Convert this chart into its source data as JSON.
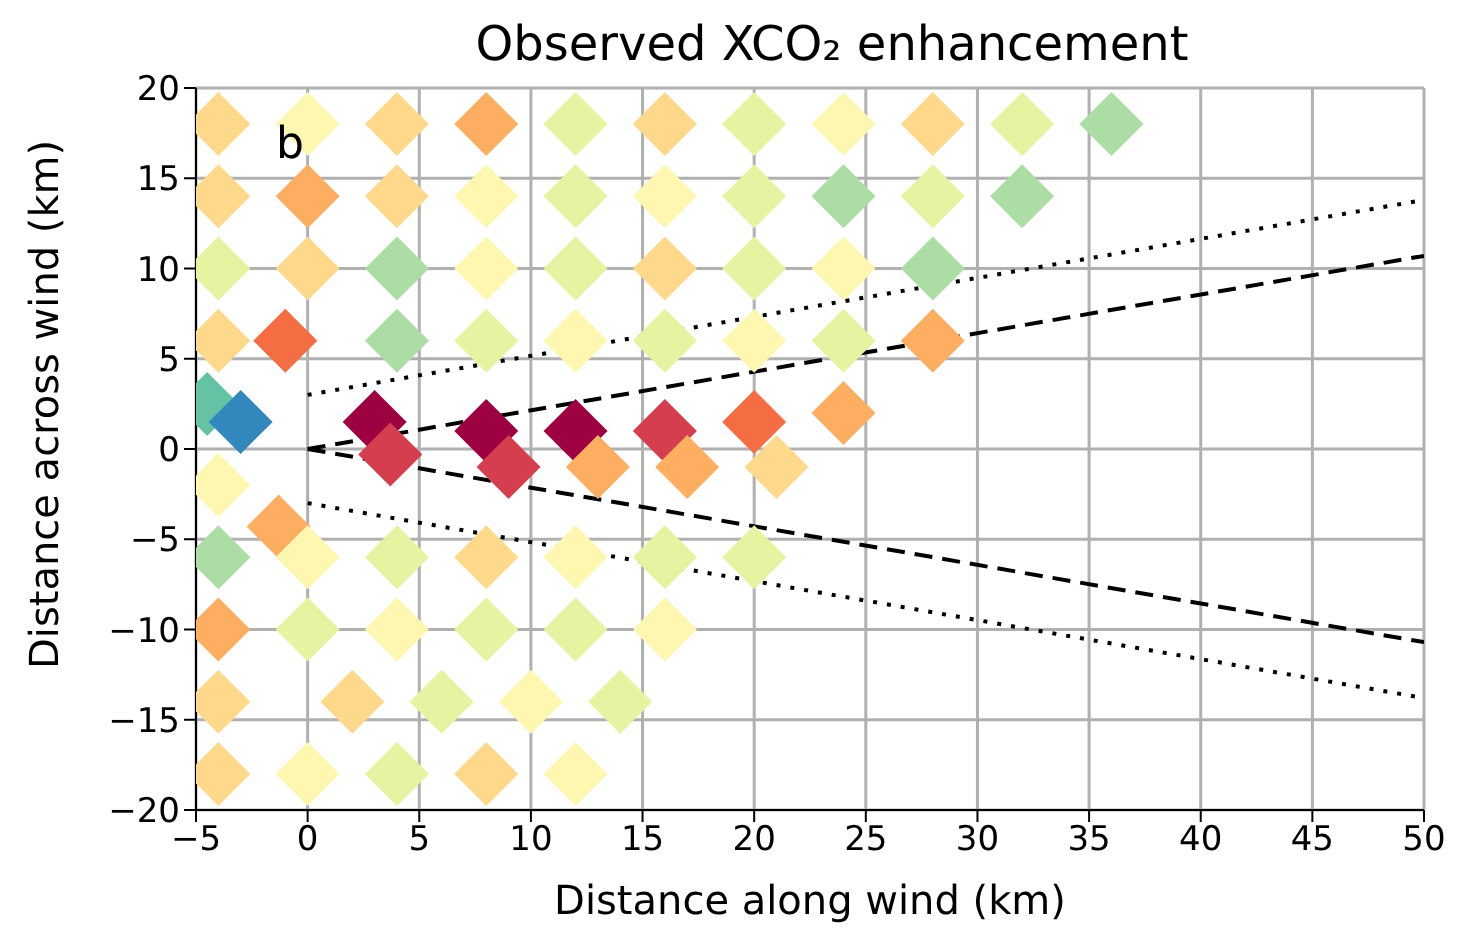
{
  "chart_data": {
    "type": "scatter",
    "title": "Observed XCO₂ enhancement",
    "xlabel": "Distance along wind (km)",
    "ylabel": "Distance across wind (km)",
    "annotations": [
      "b"
    ],
    "grid": true,
    "xlim": [
      -5,
      50
    ],
    "xticks": [
      -5,
      0,
      5,
      10,
      15,
      20,
      25,
      30,
      35,
      40,
      45,
      50
    ],
    "ylim": [
      -20,
      20
    ],
    "yticks": [
      -20,
      -15,
      -10,
      -5,
      0,
      5,
      10,
      15,
      20
    ],
    "series": [
      {
        "marker": "diamond",
        "x": [
          -4,
          0,
          4,
          8,
          12,
          16,
          20,
          24,
          28,
          32,
          36,
          -4,
          0,
          4,
          8,
          12,
          16,
          20,
          24,
          28,
          32,
          -4,
          0,
          4,
          8,
          12,
          16,
          20,
          24,
          28,
          -4,
          -1,
          4,
          8,
          12,
          16,
          20,
          24,
          28,
          -4.5,
          -3,
          3,
          8,
          12,
          16,
          20,
          24,
          -4,
          -1.3,
          3.7,
          9,
          13,
          17,
          21,
          -4,
          0,
          4,
          8,
          12,
          16,
          20,
          -4,
          0,
          4,
          8,
          12,
          16,
          -4,
          2,
          6,
          10,
          14,
          -4,
          0,
          4,
          8,
          12
        ],
        "values": [
          18,
          18,
          18,
          18,
          18,
          18,
          18,
          18,
          18,
          18,
          18,
          14,
          14,
          14,
          14,
          14,
          14,
          14,
          14,
          14,
          14,
          10,
          10,
          10,
          10,
          10,
          10,
          10,
          10,
          10,
          6,
          6,
          6,
          6,
          6,
          6,
          6,
          6,
          6,
          2.5,
          1.5,
          1.5,
          1,
          1,
          1,
          1.5,
          2,
          -2,
          -4.3,
          -0.3,
          -1,
          -1,
          -1,
          -1,
          -6,
          -6,
          -6,
          -6,
          -6,
          -6,
          -6,
          -10,
          -10,
          -10,
          -10,
          -10,
          -10,
          -14,
          -14,
          -14,
          -14,
          -14,
          -18,
          -18,
          -18,
          -18,
          -18
        ],
        "colors": [
          "#fed98b",
          "#fdf7b0",
          "#fed98b",
          "#fdae61",
          "#e6f3a0",
          "#fed98b",
          "#e6f3a0",
          "#fdf7b0",
          "#fed98b",
          "#e6f3a0",
          "#abdda4",
          "#fed98b",
          "#fdae61",
          "#fed98b",
          "#fdf7b0",
          "#e6f3a0",
          "#fdf7b0",
          "#e6f3a0",
          "#abdda4",
          "#e6f3a0",
          "#abdda4",
          "#e6f3a0",
          "#fed98b",
          "#abdda4",
          "#fdf7b0",
          "#e6f3a0",
          "#fed98b",
          "#e6f3a0",
          "#fdf7b0",
          "#abdda4",
          "#fed98b",
          "#f46d43",
          "#abdda4",
          "#e6f3a0",
          "#fdf7b0",
          "#e6f3a0",
          "#fdf7b0",
          "#e6f3a0",
          "#fdae61",
          "#66c2a5",
          "#3288bd",
          "#9e0142",
          "#9e0142",
          "#9e0142",
          "#d53e4f",
          "#f46d43",
          "#fdae61",
          "#fdf7b0",
          "#fdae61",
          "#d53e4f",
          "#d53e4f",
          "#fdae61",
          "#fdae61",
          "#fed98b",
          "#abdda4",
          "#fdf7b0",
          "#e6f3a0",
          "#fed98b",
          "#fdf7b0",
          "#e6f3a0",
          "#e6f3a0",
          "#fdae61",
          "#e6f3a0",
          "#fdf7b0",
          "#e6f3a0",
          "#e6f3a0",
          "#fdf7b0",
          "#fed98b",
          "#fed98b",
          "#e6f3a0",
          "#fdf7b0",
          "#e6f3a0",
          "#fed98b",
          "#fdf7b0",
          "#e6f3a0",
          "#fed98b",
          "#fdf7b0"
        ]
      },
      {
        "type": "line",
        "x": [
          0,
          50
        ],
        "values": [
          0,
          10.7
        ],
        "color": "#000000",
        "line_style": "dashed",
        "marker": "none"
      },
      {
        "type": "line",
        "x": [
          0,
          50
        ],
        "values": [
          0,
          -10.7
        ],
        "color": "#000000",
        "line_style": "dashed",
        "marker": "none"
      },
      {
        "type": "line",
        "x": [
          0,
          50
        ],
        "values": [
          3,
          13.8
        ],
        "color": "#000000",
        "line_style": "dotted",
        "marker": "none"
      },
      {
        "type": "line",
        "x": [
          0,
          50
        ],
        "values": [
          -3,
          -13.8
        ],
        "color": "#000000",
        "line_style": "dotted",
        "marker": "none"
      }
    ]
  }
}
